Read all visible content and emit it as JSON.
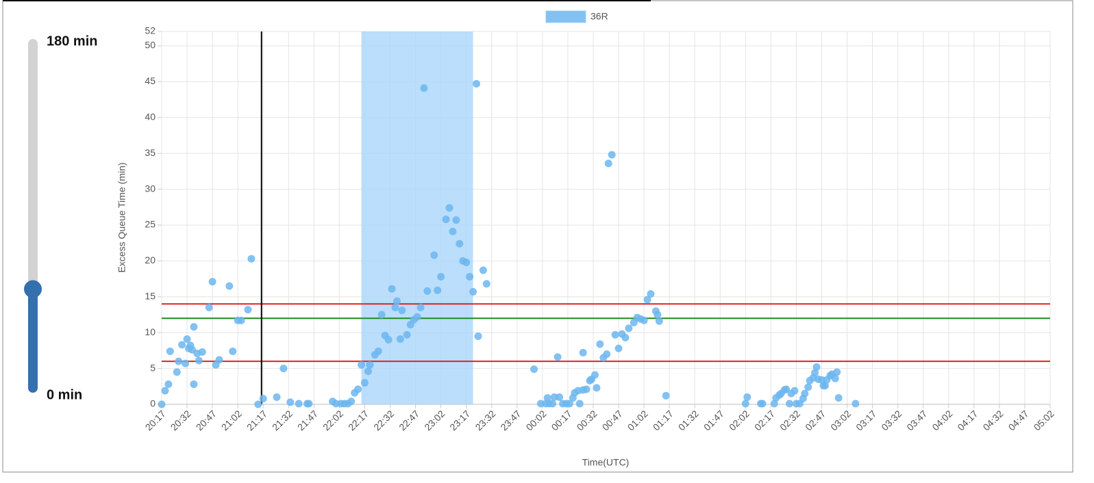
{
  "slider": {
    "min": 0,
    "max": 180,
    "value": 52,
    "max_label": "180 min",
    "min_label": "0 min"
  },
  "chart_data": {
    "type": "scatter",
    "xlabel": "Time(UTC)",
    "ylabel": "Excess Queue Time (min)",
    "xlim": [
      "20:17",
      "05:02"
    ],
    "xticks": [
      "20:17",
      "20:32",
      "20:47",
      "21:02",
      "21:17",
      "21:32",
      "21:47",
      "22:02",
      "22:17",
      "22:32",
      "22:47",
      "23:02",
      "23:17",
      "23:32",
      "23:47",
      "00:02",
      "00:17",
      "00:32",
      "00:47",
      "01:02",
      "01:17",
      "01:32",
      "01:47",
      "02:02",
      "02:17",
      "02:32",
      "02:47",
      "03:02",
      "03:17",
      "03:32",
      "03:47",
      "04:02",
      "04:17",
      "04:32",
      "04:47",
      "05:02"
    ],
    "ylim": [
      0,
      52
    ],
    "yticks": [
      0,
      5,
      10,
      15,
      20,
      25,
      30,
      35,
      40,
      45,
      50,
      52
    ],
    "grid": true,
    "reference_lines": [
      {
        "value": 14,
        "color": "#e02020"
      },
      {
        "value": 12,
        "color": "#1e8c1e"
      },
      {
        "value": 6,
        "color": "#e02020"
      }
    ],
    "vertical_line": "21:16",
    "band": [
      "22:15",
      "23:21"
    ],
    "series": [
      {
        "name": "36R",
        "color": "#6cb6ef",
        "x": [
          "20:17",
          "20:19",
          "20:21",
          "20:22",
          "20:26",
          "20:27",
          "20:29",
          "20:31",
          "20:32",
          "20:33",
          "20:34",
          "20:35",
          "20:36",
          "20:36",
          "20:38",
          "20:39",
          "20:41",
          "20:45",
          "20:47",
          "20:49",
          "20:51",
          "20:57",
          "20:59",
          "21:02",
          "21:04",
          "21:08",
          "21:10",
          "21:14",
          "21:17",
          "21:25",
          "21:29",
          "21:33",
          "21:38",
          "21:43",
          "21:44",
          "21:58",
          "22:00",
          "22:03",
          "22:05",
          "22:07",
          "22:09",
          "22:11",
          "22:13",
          "22:15",
          "22:17",
          "22:19",
          "22:20",
          "22:23",
          "22:25",
          "22:27",
          "22:29",
          "22:31",
          "22:33",
          "22:35",
          "22:36",
          "22:38",
          "22:39",
          "22:42",
          "22:44",
          "22:46",
          "22:48",
          "22:50",
          "22:52",
          "22:54",
          "22:58",
          "23:00",
          "23:02",
          "23:05",
          "23:07",
          "23:09",
          "23:11",
          "23:13",
          "23:15",
          "23:17",
          "23:19",
          "23:21",
          "23:23",
          "23:24",
          "23:27",
          "23:29",
          "23:57",
          "00:01",
          "00:04",
          "00:05",
          "00:06",
          "00:08",
          "00:09",
          "00:11",
          "00:12",
          "00:14",
          "00:16",
          "00:18",
          "00:20",
          "00:21",
          "00:23",
          "00:24",
          "00:26",
          "00:26",
          "00:28",
          "00:30",
          "00:31",
          "00:33",
          "00:34",
          "00:36",
          "00:38",
          "00:40",
          "00:41",
          "00:43",
          "00:45",
          "00:47",
          "00:49",
          "00:51",
          "00:53",
          "00:56",
          "00:58",
          "01:00",
          "01:02",
          "01:04",
          "01:06",
          "01:09",
          "01:10",
          "01:11",
          "01:15",
          "02:02",
          "02:03",
          "02:11",
          "02:12",
          "02:19",
          "02:20",
          "02:22",
          "02:23",
          "02:25",
          "02:26",
          "02:28",
          "02:29",
          "02:31",
          "02:32",
          "02:34",
          "02:36",
          "02:37",
          "02:39",
          "02:40",
          "02:42",
          "02:44",
          "02:43",
          "02:45",
          "02:47",
          "02:48",
          "02:49",
          "02:50",
          "02:52",
          "02:53",
          "02:55",
          "02:56",
          "02:57",
          "03:07"
        ],
        "values": [
          0,
          1.9,
          2.8,
          7.4,
          4.5,
          6,
          8.3,
          5.7,
          9.1,
          7.8,
          8.2,
          7.6,
          2.8,
          10.8,
          7.1,
          6.1,
          7.3,
          13.5,
          17.1,
          5.5,
          6.2,
          16.5,
          7.4,
          11.7,
          11.7,
          13.2,
          20.3,
          0,
          0.8,
          1,
          5,
          0.3,
          0.1,
          0.1,
          0.1,
          0.4,
          0.1,
          0.1,
          0.1,
          0.1,
          0.4,
          1.6,
          2.1,
          5.5,
          3,
          4.6,
          5.5,
          6.9,
          7.4,
          12.5,
          9.6,
          9,
          16.1,
          13.5,
          14.4,
          9.1,
          13.1,
          9.7,
          11.1,
          11.8,
          12.2,
          13.5,
          44.1,
          15.8,
          20.8,
          15.9,
          17.8,
          25.8,
          27.4,
          24.1,
          25.7,
          22.4,
          20,
          19.8,
          17.8,
          15.7,
          44.7,
          9.5,
          18.7,
          16.8,
          4.9,
          0.1,
          0.1,
          0.9,
          0.1,
          0.1,
          1,
          6.6,
          1,
          0.1,
          0.1,
          0.1,
          0.9,
          1.6,
          1.9,
          0.1,
          2,
          7.2,
          2.1,
          3.3,
          3.5,
          4.1,
          2.3,
          8.4,
          6.5,
          7,
          33.6,
          34.8,
          9.7,
          7.8,
          9.8,
          9.3,
          10.6,
          11.4,
          12.1,
          11.9,
          11.7,
          14.6,
          15.4,
          13,
          12.5,
          11.6,
          1.2,
          0.1,
          1,
          0.1,
          0.1,
          0.1,
          0.9,
          1.3,
          1.5,
          2,
          2.1,
          0.1,
          1.5,
          1.9,
          0.1,
          0.1,
          0.8,
          1.5,
          2.4,
          3.3,
          3.7,
          5.2,
          4.4,
          3.5,
          3.4,
          2.6,
          2.6,
          3.4,
          4,
          4.2,
          3.6,
          4.5,
          0.9,
          0.1
        ]
      }
    ]
  }
}
